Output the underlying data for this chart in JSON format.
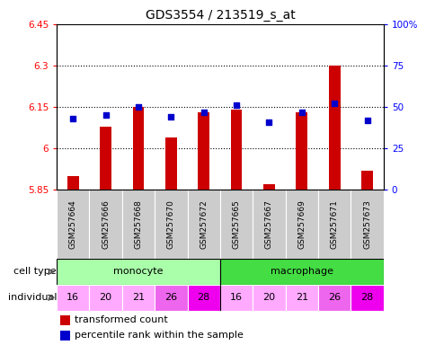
{
  "title": "GDS3554 / 213519_s_at",
  "samples": [
    "GSM257664",
    "GSM257666",
    "GSM257668",
    "GSM257670",
    "GSM257672",
    "GSM257665",
    "GSM257667",
    "GSM257669",
    "GSM257671",
    "GSM257673"
  ],
  "transformed_count": [
    5.9,
    6.08,
    6.15,
    6.04,
    6.13,
    6.14,
    5.87,
    6.13,
    6.3,
    5.92
  ],
  "percentile_rank": [
    43,
    45,
    50,
    44,
    47,
    51,
    41,
    47,
    52,
    42
  ],
  "ylim_left": [
    5.85,
    6.45
  ],
  "ylim_right": [
    0,
    100
  ],
  "yticks_left": [
    5.85,
    6.0,
    6.15,
    6.3,
    6.45
  ],
  "yticks_right": [
    0,
    25,
    50,
    75,
    100
  ],
  "ytick_labels_left": [
    "5.85",
    "6",
    "6.15",
    "6.3",
    "6.45"
  ],
  "ytick_labels_right": [
    "0",
    "25",
    "50",
    "75",
    "100%"
  ],
  "grid_lines": [
    6.0,
    6.15,
    6.3
  ],
  "individuals": [
    16,
    20,
    21,
    26,
    28,
    16,
    20,
    21,
    26,
    28
  ],
  "ind_colors": [
    "#FFAAFF",
    "#FFAAFF",
    "#FFAAFF",
    "#FFAAFF",
    "#EE44EE",
    "#FFAAFF",
    "#FFAAFF",
    "#FFAAFF",
    "#EE44EE",
    "#EE44EE"
  ],
  "bar_color": "#CC0000",
  "dot_color": "#0000CC",
  "bar_width": 0.35,
  "mono_color": "#AAFFAA",
  "macro_color": "#44DD44",
  "label_gray": "#CCCCCC",
  "legend_labels": [
    "transformed count",
    "percentile rank within the sample"
  ]
}
